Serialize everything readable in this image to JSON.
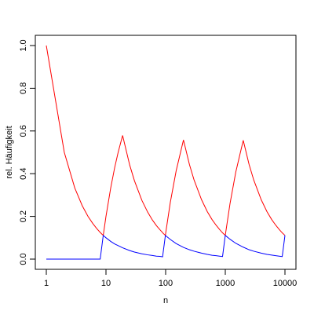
{
  "chart_data": {
    "type": "line",
    "xlabel": "n",
    "ylabel": "rel. Häufigkeit",
    "log_x": true,
    "x": [
      1,
      2,
      3,
      4,
      5,
      6,
      7,
      8,
      9,
      10,
      12,
      14,
      16,
      19,
      25,
      30,
      40,
      50,
      60,
      70,
      80,
      89,
      90,
      99,
      100,
      120,
      150,
      199,
      250,
      300,
      400,
      500,
      600,
      700,
      800,
      899,
      900,
      999,
      1000,
      1200,
      1500,
      1999,
      2500,
      3000,
      4000,
      5000,
      6000,
      7000,
      8000,
      8999,
      9000,
      9999,
      10000
    ],
    "series": [
      {
        "color": "#ff0000",
        "values": [
          1,
          0.5,
          0.333,
          0.25,
          0.2,
          0.167,
          0.143,
          0.125,
          0.111,
          0.2,
          0.333,
          0.429,
          0.5,
          0.579,
          0.44,
          0.367,
          0.275,
          0.22,
          0.183,
          0.157,
          0.138,
          0.124,
          0.122,
          0.111,
          0.12,
          0.267,
          0.413,
          0.558,
          0.444,
          0.37,
          0.278,
          0.222,
          0.185,
          0.159,
          0.139,
          0.123,
          0.123,
          0.111,
          0.112,
          0.26,
          0.408,
          0.556,
          0.444,
          0.37,
          0.278,
          0.222,
          0.185,
          0.159,
          0.139,
          0.123,
          0.123,
          0.111,
          0.111
        ]
      },
      {
        "color": "#0000ff",
        "values": [
          0,
          0,
          0,
          0,
          0,
          0,
          0,
          0,
          0.111,
          0.1,
          0.083,
          0.071,
          0.063,
          0.053,
          0.04,
          0.033,
          0.025,
          0.02,
          0.017,
          0.014,
          0.013,
          0.011,
          0.022,
          0.111,
          0.11,
          0.092,
          0.073,
          0.055,
          0.044,
          0.037,
          0.028,
          0.022,
          0.018,
          0.016,
          0.014,
          0.012,
          0.013,
          0.111,
          0.111,
          0.093,
          0.074,
          0.056,
          0.044,
          0.037,
          0.028,
          0.022,
          0.019,
          0.016,
          0.014,
          0.012,
          0.012,
          0.111,
          0.111
        ]
      }
    ],
    "xlim": [
      1,
      10000
    ],
    "xticks": [
      1,
      10,
      100,
      1000,
      10000
    ],
    "ylim": [
      0,
      1
    ],
    "yticks": [
      {
        "value": 0,
        "label": "0.0"
      },
      {
        "value": 0.2,
        "label": "0.2"
      },
      {
        "value": 0.4,
        "label": "0.4"
      },
      {
        "value": 0.6,
        "label": "0.6"
      },
      {
        "value": 0.8,
        "label": "0.8"
      },
      {
        "value": 1,
        "label": "1.0"
      }
    ]
  }
}
